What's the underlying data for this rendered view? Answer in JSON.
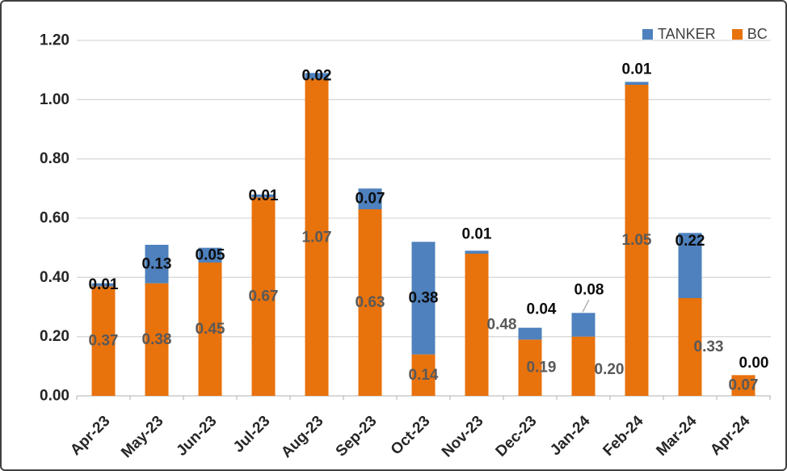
{
  "chart": {
    "legend": [
      {
        "label": "TANKER",
        "color": "#4E81BD"
      },
      {
        "label": "BC",
        "color": "#E8720C"
      }
    ]
  },
  "chart_data": {
    "type": "bar",
    "stacked": true,
    "title": "",
    "xlabel": "",
    "ylabel": "",
    "categories": [
      "Apr-23",
      "May-23",
      "Jun-23",
      "Jul-23",
      "Aug-23",
      "Sep-23",
      "Oct-23",
      "Nov-23",
      "Dec-23",
      "Jan-24",
      "Feb-24",
      "Mar-24",
      "Apr-24"
    ],
    "series": [
      {
        "name": "BC",
        "color": "#E8720C",
        "label_color": "#595959",
        "values": [
          0.37,
          0.38,
          0.45,
          0.67,
          1.07,
          0.63,
          0.14,
          0.48,
          0.19,
          0.2,
          1.05,
          0.33,
          0.07
        ]
      },
      {
        "name": "TANKER",
        "color": "#4E81BD",
        "label_color": "#0D0D0D",
        "values": [
          0.01,
          0.13,
          0.05,
          0.01,
          0.02,
          0.07,
          0.38,
          0.01,
          0.04,
          0.08,
          0.01,
          0.22,
          0.0
        ]
      }
    ],
    "totals": [
      0.38,
      0.51,
      0.5,
      0.68,
      1.09,
      0.7,
      0.52,
      0.49,
      0.23,
      0.28,
      1.06,
      0.55,
      0.07
    ],
    "ylim": [
      0,
      1.2
    ],
    "ytick_labels": [
      "0.00",
      "0.20",
      "0.40",
      "0.60",
      "0.80",
      "1.00",
      "1.20"
    ],
    "grid": true,
    "legend_position": "top-right",
    "data_labels": true,
    "label_decimals": 2,
    "label_offsets": {
      "BC": {
        "7": [
          31,
          0
        ],
        "8": [
          14,
          0
        ],
        "9": [
          32,
          4
        ],
        "11": [
          23,
          0
        ]
      },
      "TANKER": {
        "7": [
          0,
          -22
        ],
        "8": [
          14,
          -30
        ],
        "9": [
          7,
          -43
        ],
        "10": [
          0,
          -17
        ],
        "11": [
          0,
          -30
        ],
        "12": [
          13,
          -15
        ]
      }
    },
    "leader_line_category_index": 9,
    "colors": {
      "gridline": "#D9D9D9",
      "axis_line": "#BFBFBF",
      "tick_mark": "#BFBFBF",
      "axis_text": "#262626",
      "leader_line": "#A6A6A6"
    }
  }
}
